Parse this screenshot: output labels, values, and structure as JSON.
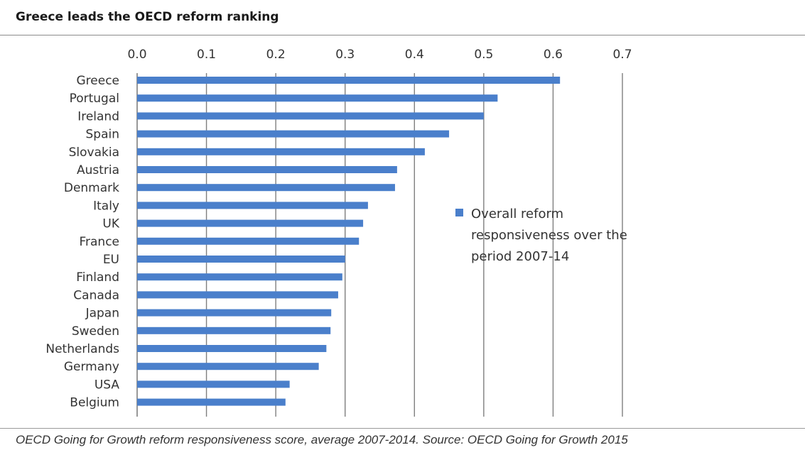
{
  "header": {
    "title": "Greece leads the OECD reform ranking"
  },
  "footer": {
    "source": "OECD Going for Growth reform responsiveness score, average 2007-2014. Source: OECD Going for Growth 2015"
  },
  "colors": {
    "bar": "#4a7fcb",
    "grid": "#7f7f7f"
  },
  "chart_data": {
    "type": "bar",
    "orientation": "horizontal",
    "title": "",
    "xlabel": "",
    "ylabel": "",
    "xlim": [
      0,
      0.7
    ],
    "x_ticks": [
      "0.0",
      "0.1",
      "0.2",
      "0.3",
      "0.4",
      "0.5",
      "0.6",
      "0.7"
    ],
    "x_axis_position": "top",
    "grid": "vertical",
    "legend_position": "right",
    "categories": [
      "Greece",
      "Portugal",
      "Ireland",
      "Spain",
      "Slovakia",
      "Austria",
      "Denmark",
      "Italy",
      "UK",
      "France",
      "EU",
      "Finland",
      "Canada",
      "Japan",
      "Sweden",
      "Netherlands",
      "Germany",
      "USA",
      "Belgium"
    ],
    "series": [
      {
        "name": "Overall reform responsiveness over the period 2007-14",
        "values": [
          0.61,
          0.52,
          0.5,
          0.45,
          0.415,
          0.375,
          0.372,
          0.333,
          0.326,
          0.32,
          0.3,
          0.296,
          0.29,
          0.28,
          0.279,
          0.273,
          0.262,
          0.22,
          0.214
        ]
      }
    ],
    "legend_lines": [
      "Overall reform",
      "responsiveness over the",
      "period 2007-14"
    ]
  }
}
